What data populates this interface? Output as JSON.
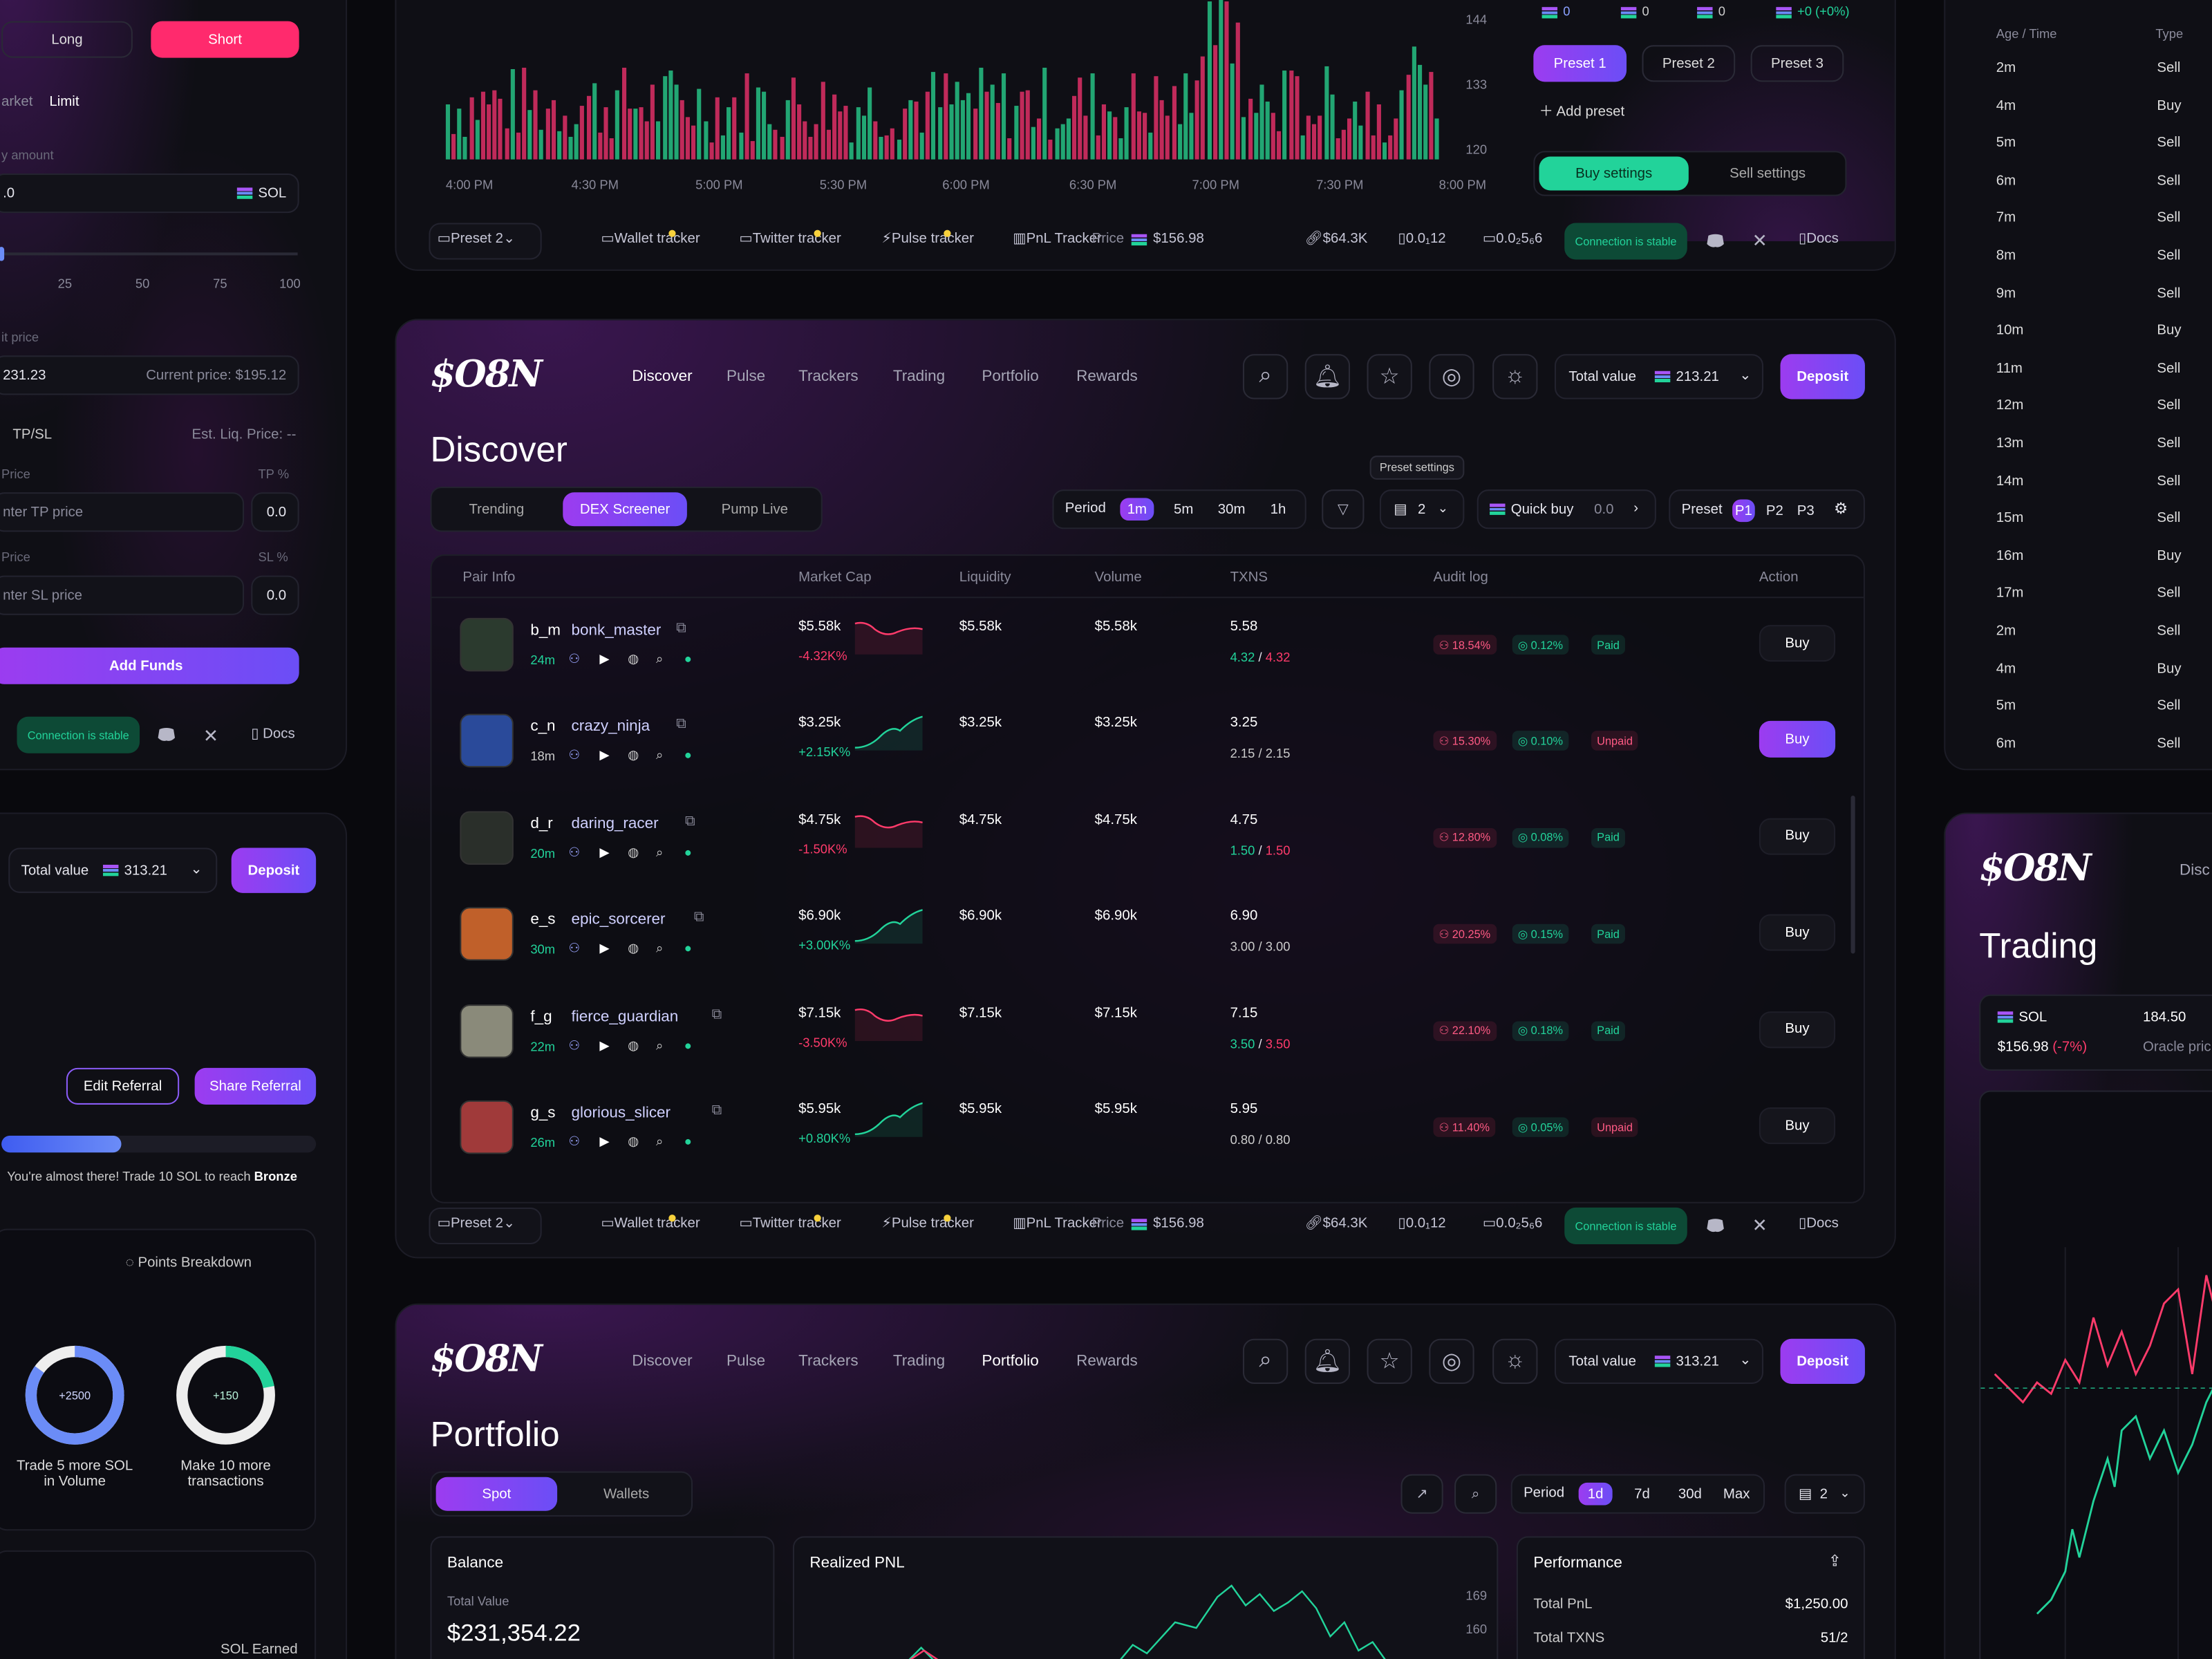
{
  "brand": {
    "logo": "$O8N"
  },
  "nav": [
    "Discover",
    "Pulse",
    "Trackers",
    "Trading",
    "Portfolio",
    "Rewards"
  ],
  "colors": {
    "accent": "#9c3cf0",
    "green": "#22d39a",
    "red": "#ff3b6b",
    "bg": "#09090d"
  },
  "trade_panel": {
    "long": "Long",
    "short": "Short",
    "market": "arket",
    "limit": "Limit",
    "amount_label": "y amount",
    "amount_value": ".0",
    "token": "SOL",
    "slider_ticks": [
      "25",
      "50",
      "75",
      "100"
    ],
    "limit_price_label": "it price",
    "limit_price_value": "231.23",
    "current_price": "Current price: $195.12",
    "tpsl": "TP/SL",
    "est_liq": "Est. Liq. Price: --",
    "tp_price_label": "Price",
    "tp_pct_label": "TP %",
    "tp_placeholder": "nter TP price",
    "tp_value": "0.0",
    "sl_price_label": "Price",
    "sl_pct_label": "SL %",
    "sl_placeholder": "nter SL price",
    "sl_value": "0.0",
    "add_funds": "Add Funds",
    "connection": "Connection is stable",
    "docs": "Docs"
  },
  "top_chart": {
    "y_ticks": [
      "144",
      "133",
      "120"
    ],
    "x_ticks": [
      "4:00 PM",
      "4:30 PM",
      "5:00 PM",
      "5:30 PM",
      "6:00 PM",
      "6:30 PM",
      "7:00 PM",
      "7:30 PM",
      "8:00 PM"
    ]
  },
  "footer": {
    "preset": "Preset 2",
    "wallet_tracker": "Wallet tracker",
    "twitter_tracker": "Twitter tracker",
    "pulse_tracker": "Pulse tracker",
    "pnl_tracker": "PnL Tracker",
    "price_label": "Price",
    "price": "$156.98",
    "mcap": "$64.3K",
    "val1": "0.0₁12",
    "val2": "0.0₂5₆6",
    "connection": "Connection is stable",
    "docs": "Docs"
  },
  "preset_panel": {
    "counts": [
      "0",
      "0",
      "0",
      "+0 (+0%)"
    ],
    "presets": [
      "Preset 1",
      "Preset 2",
      "Preset 3"
    ],
    "add_preset": "Add preset",
    "buy_settings": "Buy settings",
    "sell_settings": "Sell settings"
  },
  "age_panel": {
    "header_age": "Age / Time",
    "header_type": "Type",
    "rows": [
      [
        "2m",
        "Sell"
      ],
      [
        "4m",
        "Buy"
      ],
      [
        "5m",
        "Sell"
      ],
      [
        "6m",
        "Sell"
      ],
      [
        "7m",
        "Sell"
      ],
      [
        "8m",
        "Sell"
      ],
      [
        "9m",
        "Sell"
      ],
      [
        "10m",
        "Buy"
      ],
      [
        "11m",
        "Sell"
      ],
      [
        "12m",
        "Sell"
      ],
      [
        "13m",
        "Sell"
      ],
      [
        "14m",
        "Sell"
      ],
      [
        "15m",
        "Sell"
      ],
      [
        "16m",
        "Buy"
      ],
      [
        "17m",
        "Sell"
      ],
      [
        "2m",
        "Sell"
      ],
      [
        "4m",
        "Buy"
      ],
      [
        "5m",
        "Sell"
      ],
      [
        "6m",
        "Sell"
      ]
    ]
  },
  "discover": {
    "title": "Discover",
    "total_value_label": "Total value",
    "total_value": "213.21",
    "deposit": "Deposit",
    "tabs": [
      "Trending",
      "DEX Screener",
      "Pump Live"
    ],
    "period_label": "Period",
    "periods": [
      "1m",
      "5m",
      "30m",
      "1h"
    ],
    "preset_settings_tip": "Preset settings",
    "filter_count": "2",
    "quick_buy": "Quick buy",
    "quick_buy_value": "0.0",
    "preset_label": "Preset",
    "preset_opts": [
      "P1",
      "P2",
      "P3"
    ],
    "columns": [
      "Pair Info",
      "Market Cap",
      "Liquidity",
      "Volume",
      "TXNS",
      "Audit log",
      "Action"
    ],
    "rows": [
      {
        "sym": "b_m",
        "name": "bonk_master",
        "age": "24m",
        "mcap": "$5.58k",
        "chg": "-4.32K%",
        "up": false,
        "liq": "$5.58k",
        "vol": "$5.58k",
        "txns": "5.58",
        "tb": "4.32",
        "ts": "4.32",
        "a1": "18.54%",
        "a2": "0.12%",
        "a3": "Paid",
        "buy": "Buy",
        "color": "#2b3a2e"
      },
      {
        "sym": "c_n",
        "name": "crazy_ninja",
        "age": "18m",
        "mcap": "$3.25k",
        "chg": "+2.15K%",
        "up": true,
        "liq": "$3.25k",
        "vol": "$3.25k",
        "txns": "3.25",
        "tb": "2.15",
        "ts": "2.15",
        "a1": "15.30%",
        "a2": "0.10%",
        "a3": "Unpaid",
        "buy": "Buy",
        "color": "#2a4a9a"
      },
      {
        "sym": "d_r",
        "name": "daring_racer",
        "age": "20m",
        "mcap": "$4.75k",
        "chg": "-1.50K%",
        "up": false,
        "liq": "$4.75k",
        "vol": "$4.75k",
        "txns": "4.75",
        "tb": "1.50",
        "ts": "1.50",
        "a1": "12.80%",
        "a2": "0.08%",
        "a3": "Paid",
        "buy": "Buy",
        "color": "#2a2f2a"
      },
      {
        "sym": "e_s",
        "name": "epic_sorcerer",
        "age": "30m",
        "mcap": "$6.90k",
        "chg": "+3.00K%",
        "up": true,
        "liq": "$6.90k",
        "vol": "$6.90k",
        "txns": "6.90",
        "tb": "3.00",
        "ts": "3.00",
        "a1": "20.25%",
        "a2": "0.15%",
        "a3": "Paid",
        "buy": "Buy",
        "color": "#c0602a"
      },
      {
        "sym": "f_g",
        "name": "fierce_guardian",
        "age": "22m",
        "mcap": "$7.15k",
        "chg": "-3.50K%",
        "up": false,
        "liq": "$7.15k",
        "vol": "$7.15k",
        "txns": "7.15",
        "tb": "3.50",
        "ts": "3.50",
        "a1": "22.10%",
        "a2": "0.18%",
        "a3": "Paid",
        "buy": "Buy",
        "color": "#8a8a7a"
      },
      {
        "sym": "g_s",
        "name": "glorious_slicer",
        "age": "26m",
        "mcap": "$5.95k",
        "chg": "+0.80K%",
        "up": true,
        "liq": "$5.95k",
        "vol": "$5.95k",
        "txns": "5.95",
        "tb": "0.80",
        "ts": "0.80",
        "a1": "11.40%",
        "a2": "0.05%",
        "a3": "Unpaid",
        "buy": "Buy",
        "color": "#a03a3a"
      }
    ]
  },
  "referral": {
    "total_value_label": "Total value",
    "total_value": "313.21",
    "deposit": "Deposit",
    "edit": "Edit Referral",
    "share": "Share Referral",
    "progress": 0.38,
    "progress_text": "You're almost there! Trade 10 SOL to reach ",
    "progress_target": "Bronze",
    "points_breakdown": "Points Breakdown",
    "ring1": "+2500",
    "ring1_label": "Trade 5 more SOL in Volume",
    "ring1_fill": 0.85,
    "ring2": "+150",
    "ring2_label": "Make 10 more transactions",
    "ring2_fill": 0.22,
    "sol_earned": "SOL Earned"
  },
  "portfolio": {
    "title": "Portfolio",
    "total_value_label": "Total value",
    "total_value": "313.21",
    "deposit": "Deposit",
    "tabs": [
      "Spot",
      "Wallets"
    ],
    "period_label": "Period",
    "periods": [
      "1d",
      "7d",
      "30d",
      "Max"
    ],
    "filter_count": "2",
    "balance_title": "Balance",
    "total_value_small": "Total Value",
    "balance": "$231,354.22",
    "realized_pnl": "Realized PNL",
    "pnl_ticks": [
      "169",
      "160"
    ],
    "performance": "Performance",
    "total_pnl_label": "Total PnL",
    "total_pnl": "$1,250.00",
    "total_txns_label": "Total TXNS",
    "total_txns": "51/2"
  },
  "trading": {
    "title": "Trading",
    "nav_partial": "Disc",
    "token": "SOL",
    "price": "$156.98",
    "change": "(-7%)",
    "value": "184.50",
    "oracle": "Oracle pric"
  }
}
